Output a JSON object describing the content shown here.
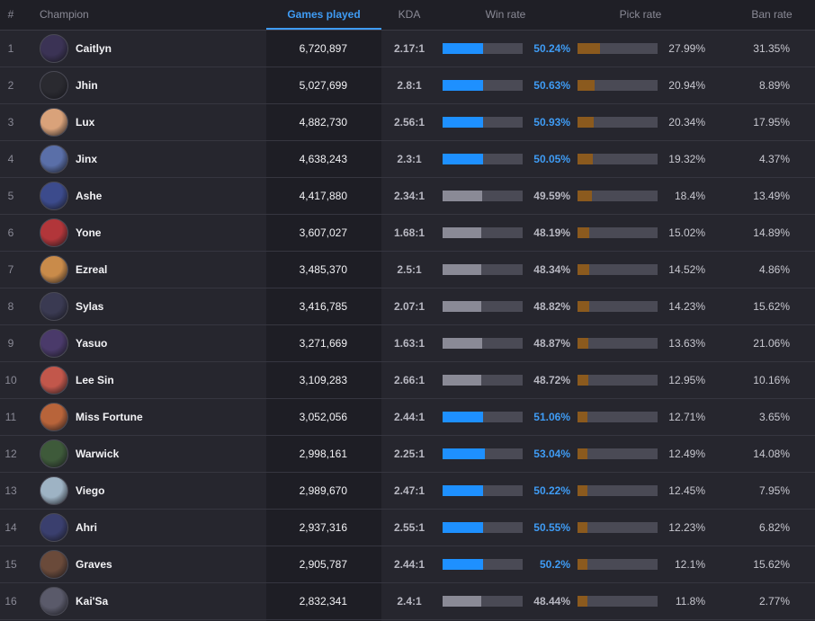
{
  "header": {
    "num": "#",
    "champion": "Champion",
    "games": "Games played",
    "kda": "KDA",
    "win": "Win rate",
    "pick": "Pick rate",
    "ban": "Ban rate"
  },
  "colors": {
    "accent_blue": "#1e90ff",
    "neutral_bar": "#8a8a96",
    "pick_bar": "#8b5a1e",
    "track": "#4a4a55"
  },
  "rows": [
    {
      "rank": "1",
      "name": "Caitlyn",
      "games": "6,720,897",
      "kda": "2.17:1",
      "win": "50.24%",
      "win_value": 50.24,
      "pick": "27.99%",
      "pick_value": 27.99,
      "ban": "31.35%",
      "above50": true
    },
    {
      "rank": "2",
      "name": "Jhin",
      "games": "5,027,699",
      "kda": "2.8:1",
      "win": "50.63%",
      "win_value": 50.63,
      "pick": "20.94%",
      "pick_value": 20.94,
      "ban": "8.89%",
      "above50": true
    },
    {
      "rank": "3",
      "name": "Lux",
      "games": "4,882,730",
      "kda": "2.56:1",
      "win": "50.93%",
      "win_value": 50.93,
      "pick": "20.34%",
      "pick_value": 20.34,
      "ban": "17.95%",
      "above50": true
    },
    {
      "rank": "4",
      "name": "Jinx",
      "games": "4,638,243",
      "kda": "2.3:1",
      "win": "50.05%",
      "win_value": 50.05,
      "pick": "19.32%",
      "pick_value": 19.32,
      "ban": "4.37%",
      "above50": true
    },
    {
      "rank": "5",
      "name": "Ashe",
      "games": "4,417,880",
      "kda": "2.34:1",
      "win": "49.59%",
      "win_value": 49.59,
      "pick": "18.4%",
      "pick_value": 18.4,
      "ban": "13.49%",
      "above50": false
    },
    {
      "rank": "6",
      "name": "Yone",
      "games": "3,607,027",
      "kda": "1.68:1",
      "win": "48.19%",
      "win_value": 48.19,
      "pick": "15.02%",
      "pick_value": 15.02,
      "ban": "14.89%",
      "above50": false
    },
    {
      "rank": "7",
      "name": "Ezreal",
      "games": "3,485,370",
      "kda": "2.5:1",
      "win": "48.34%",
      "win_value": 48.34,
      "pick": "14.52%",
      "pick_value": 14.52,
      "ban": "4.86%",
      "above50": false
    },
    {
      "rank": "8",
      "name": "Sylas",
      "games": "3,416,785",
      "kda": "2.07:1",
      "win": "48.82%",
      "win_value": 48.82,
      "pick": "14.23%",
      "pick_value": 14.23,
      "ban": "15.62%",
      "above50": false
    },
    {
      "rank": "9",
      "name": "Yasuo",
      "games": "3,271,669",
      "kda": "1.63:1",
      "win": "48.87%",
      "win_value": 48.87,
      "pick": "13.63%",
      "pick_value": 13.63,
      "ban": "21.06%",
      "above50": false
    },
    {
      "rank": "10",
      "name": "Lee Sin",
      "games": "3,109,283",
      "kda": "2.66:1",
      "win": "48.72%",
      "win_value": 48.72,
      "pick": "12.95%",
      "pick_value": 12.95,
      "ban": "10.16%",
      "above50": false
    },
    {
      "rank": "11",
      "name": "Miss Fortune",
      "games": "3,052,056",
      "kda": "2.44:1",
      "win": "51.06%",
      "win_value": 51.06,
      "pick": "12.71%",
      "pick_value": 12.71,
      "ban": "3.65%",
      "above50": true
    },
    {
      "rank": "12",
      "name": "Warwick",
      "games": "2,998,161",
      "kda": "2.25:1",
      "win": "53.04%",
      "win_value": 53.04,
      "pick": "12.49%",
      "pick_value": 12.49,
      "ban": "14.08%",
      "above50": true
    },
    {
      "rank": "13",
      "name": "Viego",
      "games": "2,989,670",
      "kda": "2.47:1",
      "win": "50.22%",
      "win_value": 50.22,
      "pick": "12.45%",
      "pick_value": 12.45,
      "ban": "7.95%",
      "above50": true
    },
    {
      "rank": "14",
      "name": "Ahri",
      "games": "2,937,316",
      "kda": "2.55:1",
      "win": "50.55%",
      "win_value": 50.55,
      "pick": "12.23%",
      "pick_value": 12.23,
      "ban": "6.82%",
      "above50": true
    },
    {
      "rank": "15",
      "name": "Graves",
      "games": "2,905,787",
      "kda": "2.44:1",
      "win": "50.2%",
      "win_value": 50.2,
      "pick": "12.1%",
      "pick_value": 12.1,
      "ban": "15.62%",
      "above50": true
    },
    {
      "rank": "16",
      "name": "Kai'Sa",
      "games": "2,832,341",
      "kda": "2.4:1",
      "win": "48.44%",
      "win_value": 48.44,
      "pick": "11.8%",
      "pick_value": 11.8,
      "ban": "2.77%",
      "above50": false
    }
  ],
  "avatars": [
    "#3b3355",
    "#2a2a30",
    "#d9a27a",
    "#5a6fa8",
    "#3c4b8c",
    "#b2363a",
    "#c98b4a",
    "#3a3a52",
    "#4a3a6a",
    "#c2574b",
    "#b8643a",
    "#3e5a3a",
    "#9eb3c4",
    "#3a3f6e",
    "#6a4a3a",
    "#5a5a6a"
  ]
}
